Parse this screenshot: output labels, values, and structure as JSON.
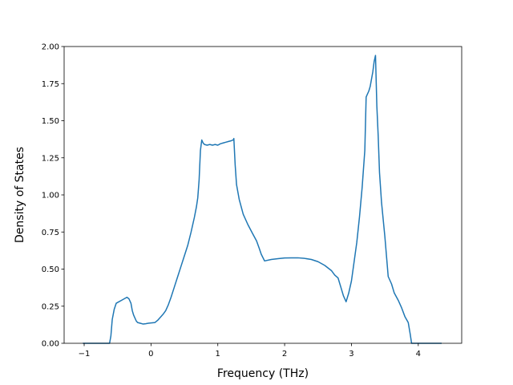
{
  "chart_data": {
    "type": "line",
    "title": "",
    "xlabel": "Frequency (THz)",
    "ylabel": "Density of States",
    "xlim": [
      -1.3,
      4.65
    ],
    "ylim": [
      0.0,
      2.0
    ],
    "xticks": [
      -1,
      0,
      1,
      2,
      3,
      4
    ],
    "xtick_labels": [
      "−1",
      "0",
      "1",
      "2",
      "3",
      "4"
    ],
    "yticks": [
      0.0,
      0.25,
      0.5,
      0.75,
      1.0,
      1.25,
      1.5,
      1.75,
      2.0
    ],
    "ytick_labels": [
      "0.00",
      "0.25",
      "0.50",
      "0.75",
      "1.00",
      "1.25",
      "1.50",
      "1.75",
      "2.00"
    ],
    "grid": false,
    "line_color": "#1f77b4",
    "series": [
      {
        "x": [
          -1.02,
          -0.62,
          -0.6,
          -0.58,
          -0.55,
          -0.52,
          -0.48,
          -0.44,
          -0.4,
          -0.36,
          -0.33,
          -0.3,
          -0.28,
          -0.26,
          -0.24,
          -0.22,
          -0.2,
          -0.16,
          -0.12,
          -0.08,
          -0.04,
          0.0,
          0.06,
          0.1,
          0.14,
          0.18,
          0.22,
          0.26,
          0.3,
          0.35,
          0.4,
          0.45,
          0.5,
          0.55,
          0.6,
          0.65,
          0.68,
          0.7,
          0.72,
          0.74,
          0.76,
          0.78,
          0.8,
          0.84,
          0.88,
          0.92,
          0.96,
          1.0,
          1.04,
          1.08,
          1.12,
          1.16,
          1.2,
          1.23,
          1.24,
          1.26,
          1.28,
          1.32,
          1.38,
          1.45,
          1.52,
          1.58,
          1.62,
          1.65,
          1.7,
          1.8,
          1.9,
          2.0,
          2.1,
          2.2,
          2.3,
          2.4,
          2.5,
          2.6,
          2.7,
          2.75,
          2.8,
          2.84,
          2.88,
          2.92,
          2.96,
          3.0,
          3.04,
          3.08,
          3.12,
          3.16,
          3.2,
          3.22,
          3.24,
          3.26,
          3.28,
          3.3,
          3.32,
          3.34,
          3.36,
          3.38,
          3.4,
          3.42,
          3.45,
          3.5,
          3.55,
          3.6,
          3.62,
          3.64,
          3.7,
          3.75,
          3.8,
          3.85,
          3.88,
          3.9,
          3.92,
          3.95,
          4.0,
          4.1,
          4.2,
          4.35
        ],
        "y": [
          0.0,
          0.0,
          0.05,
          0.16,
          0.23,
          0.27,
          0.28,
          0.29,
          0.3,
          0.31,
          0.3,
          0.27,
          0.22,
          0.19,
          0.17,
          0.15,
          0.14,
          0.135,
          0.13,
          0.132,
          0.135,
          0.137,
          0.14,
          0.155,
          0.175,
          0.195,
          0.22,
          0.26,
          0.31,
          0.38,
          0.45,
          0.52,
          0.59,
          0.66,
          0.75,
          0.85,
          0.92,
          0.98,
          1.1,
          1.3,
          1.37,
          1.35,
          1.34,
          1.335,
          1.34,
          1.335,
          1.34,
          1.335,
          1.345,
          1.35,
          1.355,
          1.36,
          1.365,
          1.37,
          1.38,
          1.2,
          1.07,
          0.97,
          0.87,
          0.8,
          0.74,
          0.69,
          0.64,
          0.6,
          0.555,
          0.565,
          0.57,
          0.575,
          0.576,
          0.576,
          0.572,
          0.565,
          0.55,
          0.525,
          0.49,
          0.46,
          0.44,
          0.38,
          0.32,
          0.28,
          0.34,
          0.42,
          0.55,
          0.68,
          0.85,
          1.05,
          1.3,
          1.66,
          1.68,
          1.7,
          1.73,
          1.78,
          1.83,
          1.9,
          1.94,
          1.6,
          1.4,
          1.15,
          0.95,
          0.72,
          0.45,
          0.4,
          0.37,
          0.34,
          0.29,
          0.24,
          0.18,
          0.14,
          0.06,
          0.0,
          0.0,
          0.0,
          0.0,
          0.0,
          0.0,
          0.0
        ]
      }
    ]
  }
}
